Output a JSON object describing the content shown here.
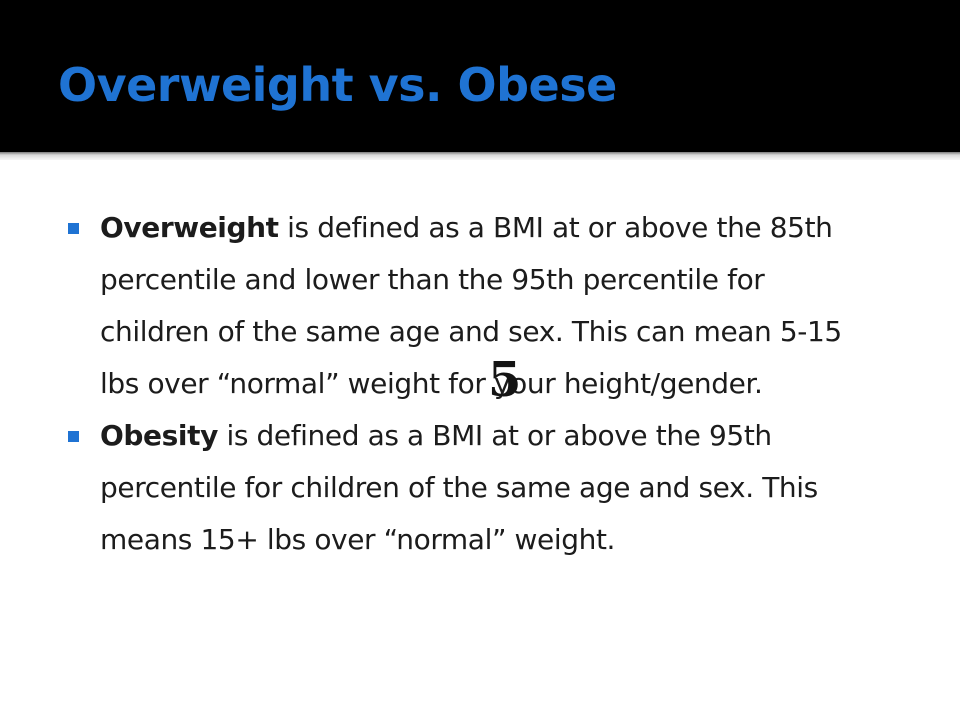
{
  "slide": {
    "title": "Overweight vs. Obese",
    "bullets": [
      {
        "term": "Overweight",
        "text": " is defined as a BMI at or above the 85th percentile and lower than the 95th percentile for children of the same age and sex. This can mean 5-15 lbs over “normal” weight for your height/gender."
      },
      {
        "term": "Obesity",
        "text": " is defined as a BMI at or above the 95th percentile for children of the same age and sex. This means 15+ lbs over “normal” weight."
      }
    ],
    "overlay_glyph": "5"
  },
  "colors": {
    "title": "#1f73d3",
    "bullet_marker": "#1f73d3",
    "body_text": "#1c1c1c",
    "title_background": "#000000",
    "content_background": "#ffffff"
  },
  "icons": {
    "bullet_marker": "square-bullet-icon"
  }
}
